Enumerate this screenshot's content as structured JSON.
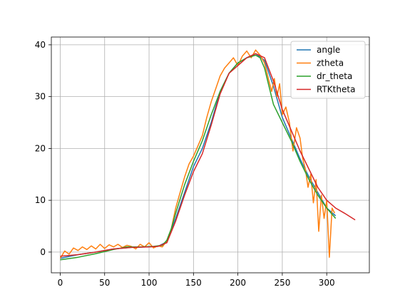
{
  "chart_data": {
    "type": "line",
    "title": "",
    "xlabel": "",
    "ylabel": "",
    "xlim": [
      -10,
      348
    ],
    "ylim": [
      -4,
      41.5
    ],
    "xticks": [
      0,
      50,
      100,
      150,
      200,
      250,
      300
    ],
    "yticks": [
      0,
      10,
      20,
      30,
      40
    ],
    "grid": true,
    "legend_position": "top-right",
    "series": [
      {
        "name": "angle",
        "color": "#1f77b4",
        "x": [
          0,
          20,
          40,
          60,
          80,
          100,
          110,
          120,
          130,
          140,
          150,
          160,
          170,
          180,
          190,
          200,
          210,
          220,
          230,
          240,
          250,
          260,
          270,
          280,
          290,
          300,
          310
        ],
        "y": [
          -1.2,
          -0.5,
          0.0,
          0.6,
          0.9,
          1.0,
          1.1,
          2.0,
          6.5,
          11.5,
          16.5,
          20.0,
          25.0,
          31.0,
          34.5,
          36.5,
          37.5,
          38.3,
          37.0,
          32.0,
          26.0,
          22.0,
          18.0,
          14.5,
          11.5,
          8.5,
          7.0
        ]
      },
      {
        "name": "ztheta",
        "color": "#ff7f0e",
        "x": [
          0,
          5,
          10,
          15,
          20,
          25,
          30,
          35,
          40,
          45,
          50,
          55,
          60,
          65,
          70,
          75,
          80,
          85,
          90,
          95,
          100,
          105,
          110,
          115,
          120,
          125,
          130,
          135,
          140,
          145,
          150,
          155,
          160,
          165,
          170,
          175,
          180,
          185,
          190,
          195,
          200,
          205,
          210,
          215,
          220,
          225,
          230,
          235,
          238,
          241,
          244,
          247,
          250,
          254,
          258,
          262,
          266,
          270,
          273,
          276,
          279,
          282,
          285,
          288,
          291,
          294,
          297,
          300,
          303,
          306,
          309
        ],
        "y": [
          -1.2,
          0.2,
          -0.4,
          0.8,
          0.3,
          1.0,
          0.5,
          1.2,
          0.6,
          1.5,
          0.7,
          1.4,
          1.0,
          1.5,
          0.9,
          1.3,
          1.1,
          0.6,
          1.5,
          1.0,
          1.8,
          0.8,
          1.2,
          1.0,
          2.2,
          4.5,
          8.5,
          11.5,
          14.5,
          17.0,
          18.5,
          20.5,
          22.5,
          26.0,
          29.0,
          31.5,
          34.0,
          35.5,
          36.5,
          37.5,
          36.0,
          37.8,
          38.8,
          37.5,
          39.0,
          38.0,
          36.5,
          33.0,
          31.0,
          33.5,
          30.0,
          32.5,
          26.5,
          28.0,
          25.0,
          19.5,
          24.0,
          22.0,
          18.0,
          16.0,
          12.5,
          15.0,
          9.5,
          14.0,
          4.0,
          11.0,
          6.5,
          10.0,
          -1.0,
          8.5,
          7.5
        ]
      },
      {
        "name": "dr_theta",
        "color": "#2ca02c",
        "x": [
          0,
          20,
          40,
          60,
          75,
          90,
          105,
          115,
          120,
          125,
          130,
          140,
          150,
          160,
          170,
          180,
          190,
          200,
          210,
          220,
          225,
          230,
          235,
          240,
          250,
          260,
          270,
          280,
          290,
          300,
          310
        ],
        "y": [
          -1.5,
          -1.0,
          -0.3,
          0.5,
          1.0,
          1.0,
          1.1,
          1.3,
          2.3,
          4.5,
          7.5,
          13.0,
          17.5,
          21.5,
          26.5,
          31.0,
          34.5,
          36.5,
          37.5,
          38.0,
          37.5,
          35.5,
          32.0,
          28.5,
          25.0,
          21.5,
          17.5,
          14.0,
          11.0,
          8.5,
          6.5
        ]
      },
      {
        "name": "RTKtheta",
        "color": "#d62728",
        "x": [
          0,
          20,
          40,
          60,
          80,
          100,
          110,
          120,
          130,
          140,
          150,
          160,
          170,
          180,
          190,
          200,
          210,
          220,
          230,
          240,
          250,
          260,
          270,
          280,
          290,
          300,
          310,
          320,
          332
        ],
        "y": [
          -0.8,
          -0.5,
          0.0,
          0.6,
          0.9,
          1.0,
          1.1,
          1.8,
          6.0,
          11.0,
          15.5,
          19.0,
          24.5,
          30.5,
          34.5,
          36.0,
          37.5,
          38.3,
          37.5,
          33.0,
          27.5,
          23.5,
          19.5,
          16.0,
          12.5,
          10.0,
          8.5,
          7.5,
          6.2
        ]
      }
    ]
  }
}
